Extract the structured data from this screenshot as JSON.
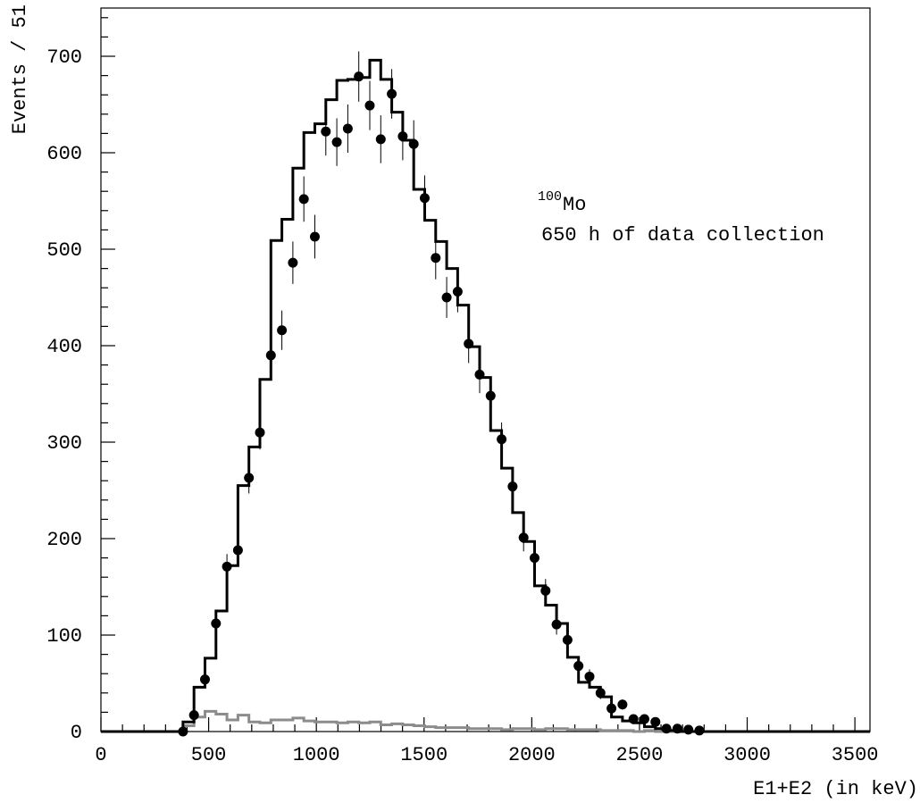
{
  "chart_data": {
    "type": "histogram-with-points",
    "xlabel": "E1+E2 (in keV)",
    "ylabel": "Events / 51",
    "xlim": [
      0,
      3570
    ],
    "ylim": [
      0,
      750
    ],
    "x_ticks": [
      "0",
      "500",
      "1000",
      "1500",
      "2000",
      "2500",
      "3000",
      "3500"
    ],
    "x_tick_values": [
      0,
      500,
      1000,
      1500,
      2000,
      2500,
      3000,
      3500
    ],
    "y_ticks": [
      "0",
      "100",
      "200",
      "300",
      "400",
      "500",
      "600",
      "700"
    ],
    "y_tick_values": [
      0,
      100,
      200,
      300,
      400,
      500,
      600,
      700
    ],
    "annotation": {
      "isotope_mass": "100",
      "isotope_symbol": "Mo",
      "line2": "650 h of data collection"
    },
    "grid": false,
    "bin_width": 51,
    "bin_start": 381,
    "data_points": {
      "x": [
        381,
        432,
        483,
        534,
        585,
        636,
        687,
        738,
        789,
        840,
        891,
        942,
        993,
        1044,
        1095,
        1146,
        1197,
        1248,
        1299,
        1350,
        1401,
        1452,
        1503,
        1554,
        1605,
        1656,
        1707,
        1758,
        1809,
        1860,
        1911,
        1962,
        2013,
        2064,
        2115,
        2166,
        2217,
        2268,
        2319,
        2370,
        2421,
        2472,
        2523,
        2574,
        2625,
        2676,
        2727,
        2778
      ],
      "y": [
        0,
        17,
        54,
        112,
        171,
        188,
        263,
        310,
        390,
        416,
        486,
        552,
        513,
        622,
        611,
        625,
        679,
        649,
        614,
        661,
        617,
        609,
        553,
        491,
        450,
        456,
        402,
        370,
        348,
        303,
        254,
        201,
        180,
        146,
        111,
        95,
        68,
        57,
        40,
        24,
        28,
        13,
        13,
        10,
        3,
        3,
        2,
        1
      ],
      "err": [
        0,
        4,
        7,
        10.5,
        13,
        13.7,
        16.2,
        17.6,
        19.7,
        20.4,
        22,
        23.5,
        22.6,
        24.9,
        24.7,
        25,
        26.1,
        25.5,
        24.8,
        25.7,
        24.8,
        24.7,
        23.5,
        22.2,
        21.2,
        21.4,
        20,
        19.2,
        18.7,
        17.4,
        15.9,
        14.2,
        13.4,
        12.1,
        10.5,
        9.7,
        8.2,
        7.5,
        6.3,
        4.9,
        5.3,
        3.6,
        3.6,
        3.2,
        1.7,
        1.7,
        1.4,
        1
      ]
    },
    "series": [
      {
        "style": "histogram-black",
        "edges": [
          0,
          381,
          432,
          483,
          534,
          585,
          636,
          687,
          738,
          789,
          840,
          891,
          942,
          993,
          1044,
          1095,
          1146,
          1197,
          1248,
          1299,
          1350,
          1401,
          1452,
          1503,
          1554,
          1605,
          1656,
          1707,
          1758,
          1809,
          1860,
          1911,
          1962,
          2013,
          2064,
          2115,
          2166,
          2217,
          2268,
          2319,
          2370,
          2421,
          2472,
          2523,
          2574,
          2625,
          2676,
          3570
        ],
        "values": [
          0,
          10,
          46,
          76,
          125,
          172,
          255,
          295,
          365,
          509,
          531,
          584,
          621,
          630,
          655,
          675,
          676,
          678,
          696,
          676,
          642,
          613,
          562,
          530,
          508,
          480,
          442,
          399,
          367,
          312,
          273,
          227,
          197,
          151,
          131,
          112,
          77,
          51,
          46,
          36,
          15,
          11,
          9,
          5,
          3,
          1,
          0
        ]
      },
      {
        "style": "histogram-gray",
        "edges": [
          0,
          381,
          432,
          483,
          534,
          585,
          636,
          687,
          738,
          789,
          840,
          891,
          942,
          993,
          1044,
          1095,
          1146,
          1197,
          1248,
          1299,
          1350,
          1401,
          1452,
          1503,
          1554,
          1605,
          1656,
          1707,
          1758,
          1809,
          1860,
          1911,
          1962,
          2013,
          2064,
          2115,
          2166,
          2217,
          2268,
          2319,
          2370,
          2421,
          2472,
          2523,
          2574,
          2625,
          3570
        ],
        "values": [
          0,
          6,
          15,
          21,
          18,
          12,
          17,
          10,
          9,
          12,
          12,
          14,
          11,
          10,
          10,
          9,
          10,
          9,
          10,
          7,
          8,
          7,
          6,
          5,
          4,
          4,
          4,
          3,
          3,
          3,
          2,
          3,
          3,
          2,
          3,
          3,
          2,
          2,
          2,
          1,
          1,
          1,
          0,
          1,
          0,
          0
        ]
      }
    ]
  }
}
